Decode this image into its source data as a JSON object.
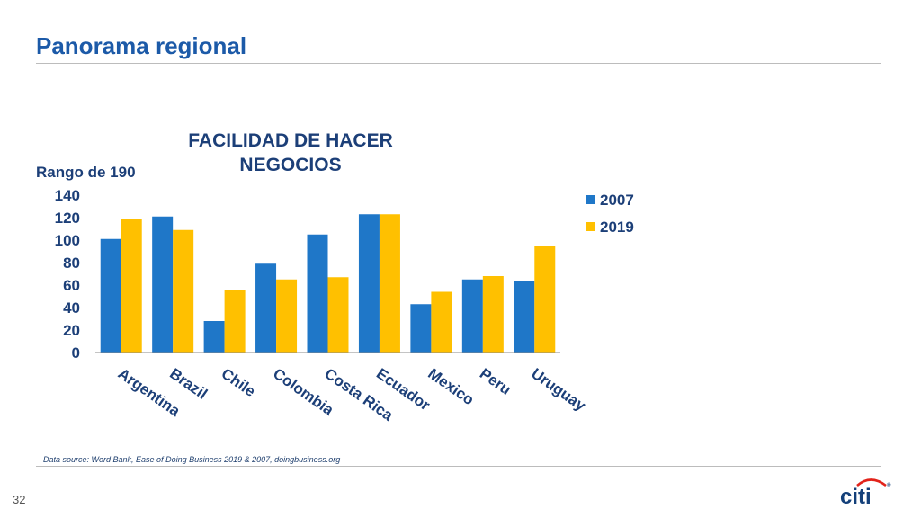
{
  "slide": {
    "title": "Panorama regional",
    "source": "Data source: Word Bank, Ease of Doing Business 2019 & 2007, doingbusiness.org",
    "page_number": "32",
    "logo": "citi",
    "logo_mark": "®"
  },
  "colors": {
    "series_2007": "#1f77c8",
    "series_2019": "#ffc000",
    "title": "#1c5aa8",
    "axis_text": "#1c3f78"
  },
  "chart_data": {
    "type": "bar",
    "title": "FACILIDAD DE HACER NEGOCIOS",
    "title_lines": [
      "FACILIDAD DE HACER",
      "NEGOCIOS"
    ],
    "ylabel": "Rango de 190",
    "xlabel": "",
    "categories": [
      "Argentina",
      "Brazil",
      "Chile",
      "Colombia",
      "Costa Rica",
      "Ecuador",
      "Mexico",
      "Peru",
      "Uruguay"
    ],
    "series": [
      {
        "name": "2007",
        "values": [
          101,
          121,
          28,
          79,
          105,
          123,
          43,
          65,
          64
        ]
      },
      {
        "name": "2019",
        "values": [
          119,
          109,
          56,
          65,
          67,
          123,
          54,
          68,
          95
        ]
      }
    ],
    "ylim": [
      0,
      140
    ],
    "yticks": [
      0,
      20,
      40,
      60,
      80,
      100,
      120,
      140
    ],
    "grid": false,
    "legend": "right"
  }
}
